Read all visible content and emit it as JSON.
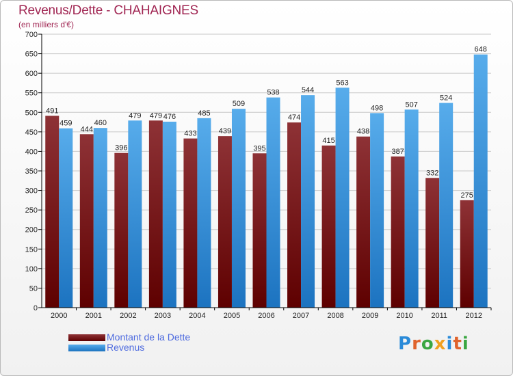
{
  "header": {
    "title": "Revenus/Dette - CHAHAIGNES",
    "subtitle": "(en milliers d'€)"
  },
  "legend": {
    "debt_label": "Montant de la Dette",
    "revenue_label": "Revenus"
  },
  "logo": {
    "letters": [
      "P",
      "r",
      "o",
      "x",
      "i",
      "t",
      "i"
    ]
  },
  "colors": {
    "debt_top": "#8e3236",
    "debt_bottom": "#5e0000",
    "revenue_top": "#57aceb",
    "revenue_bottom": "#1c73c0",
    "title": "#a02552",
    "legend_text": "#4d6adf",
    "grid": "#c8c8c8",
    "logo": [
      "#2a8ad8",
      "#e0632c",
      "#3aa641",
      "#f0a020",
      "#2a8ad8",
      "#e0632c",
      "#3aa641"
    ]
  },
  "chart_data": {
    "type": "bar",
    "categories": [
      "2000",
      "2001",
      "2002",
      "2003",
      "2004",
      "2005",
      "2006",
      "2007",
      "2008",
      "2009",
      "2010",
      "2011",
      "2012"
    ],
    "series": [
      {
        "name": "Montant de la Dette",
        "values": [
          491,
          444,
          396,
          479,
          433,
          439,
          395,
          474,
          415,
          438,
          387,
          332,
          275
        ]
      },
      {
        "name": "Revenus",
        "values": [
          459,
          460,
          479,
          476,
          485,
          509,
          538,
          544,
          563,
          498,
          507,
          524,
          648
        ]
      }
    ],
    "title": "Revenus/Dette - CHAHAIGNES",
    "ylabel": "(en milliers d'€)",
    "ylim": [
      0,
      700
    ],
    "yticks": [
      0,
      50,
      100,
      150,
      200,
      250,
      300,
      350,
      400,
      450,
      500,
      550,
      600,
      650,
      700
    ],
    "grid": true,
    "legend_position": "bottom-left"
  }
}
